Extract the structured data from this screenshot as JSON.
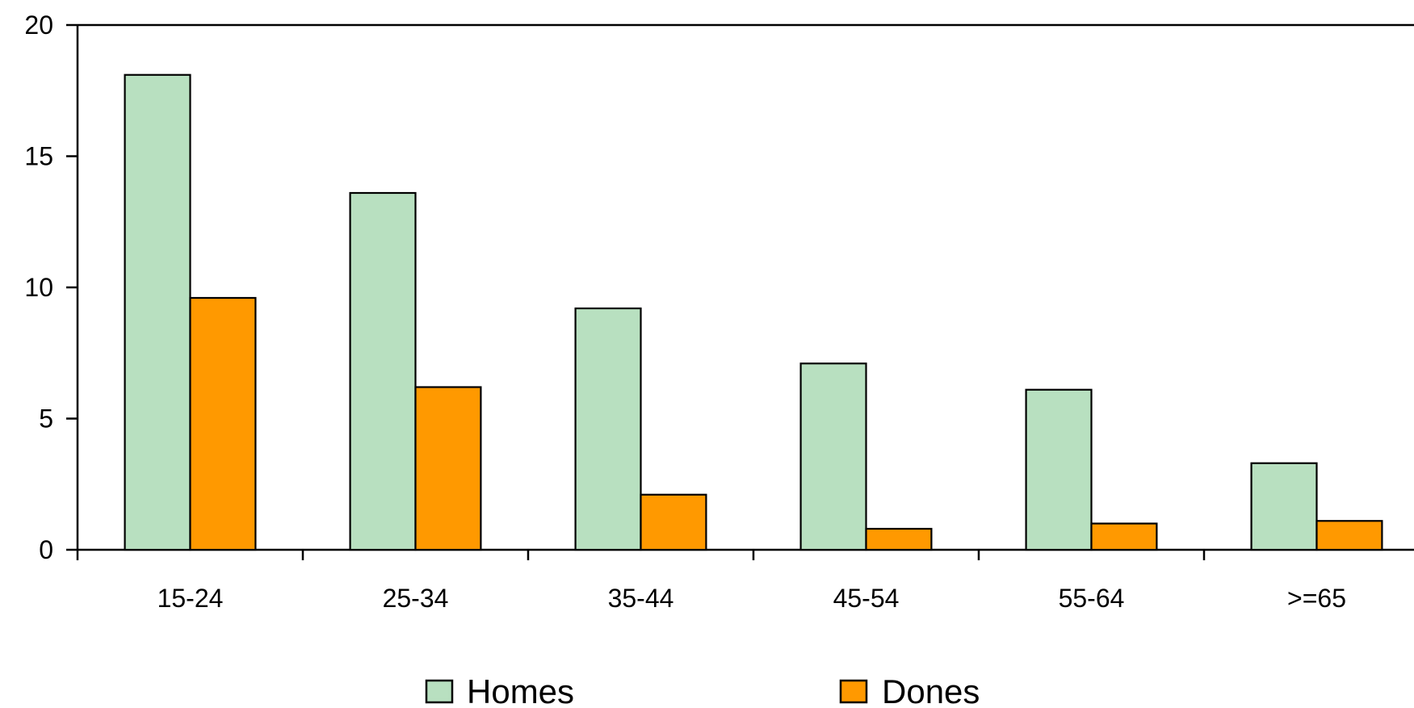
{
  "chart_data": {
    "type": "bar",
    "title": "",
    "xlabel": "",
    "ylabel": "",
    "categories": [
      "15-24",
      "25-34",
      "35-44",
      "45-54",
      "55-64",
      ">=65"
    ],
    "series": [
      {
        "name": "Homes",
        "color": "#b8e0c0",
        "values": [
          18.1,
          13.6,
          9.2,
          7.1,
          6.1,
          3.3
        ]
      },
      {
        "name": "Dones",
        "color": "#ff9900",
        "values": [
          9.6,
          6.2,
          2.1,
          0.8,
          1.0,
          1.1
        ]
      }
    ],
    "ylim": [
      0,
      20
    ],
    "yticks": [
      0,
      5,
      10,
      15,
      20
    ],
    "grid": false,
    "legend_position": "bottom"
  }
}
